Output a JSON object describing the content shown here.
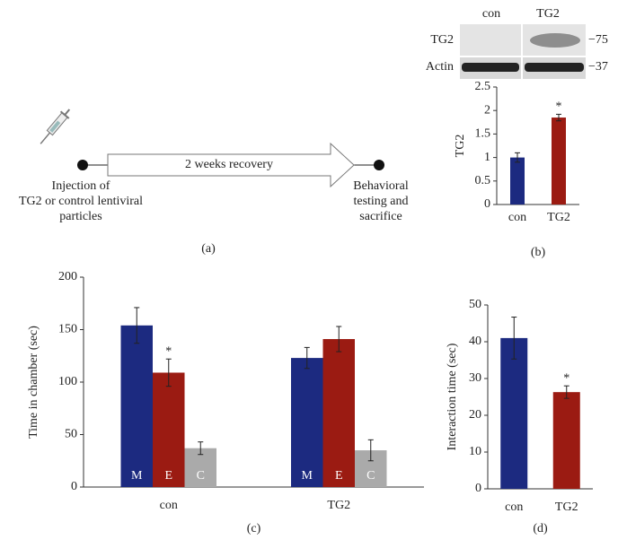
{
  "diagram": {
    "step": "2 weeks recovery",
    "start_lines": [
      "Injection of",
      "TG2 or control lentiviral",
      "particles"
    ],
    "end_lines": [
      "Behavioral",
      "testing and",
      "sacrifice"
    ],
    "panel": "(a)"
  },
  "blot": {
    "lanes": [
      "con",
      "TG2"
    ],
    "rows": [
      {
        "label": "TG2",
        "marker": "−75"
      },
      {
        "label": "Actin",
        "marker": "−37"
      }
    ]
  },
  "chart_data": [
    {
      "type": "bar",
      "panel": "(b)",
      "ylabel": "TG2",
      "categories": [
        "con",
        "TG2"
      ],
      "values": [
        1,
        1.85
      ],
      "errors": [
        0.1,
        0.07
      ],
      "colors": [
        "#1c2a80",
        "#9b1b12"
      ],
      "ylim": [
        0,
        2.5
      ],
      "yticks": [
        0,
        0.5,
        1,
        1.5,
        2,
        2.5
      ],
      "annotations": [
        {
          "text": "*",
          "category": "TG2"
        }
      ]
    },
    {
      "type": "bar",
      "panel": "(c)",
      "ylabel": "Time in chamber (sec)",
      "categories": [
        "con",
        "TG2"
      ],
      "series": [
        {
          "name": "M",
          "color": "#1c2a80",
          "values": [
            154,
            123
          ],
          "errors": [
            17,
            10
          ]
        },
        {
          "name": "E",
          "color": "#9b1b12",
          "values": [
            109,
            141
          ],
          "errors": [
            13,
            12
          ]
        },
        {
          "name": "C",
          "color": "#aaaaaa",
          "values": [
            37,
            35
          ],
          "errors": [
            6,
            10
          ]
        }
      ],
      "ylim": [
        0,
        200
      ],
      "yticks": [
        0,
        50,
        100,
        150,
        200
      ],
      "annotations": [
        {
          "text": "*",
          "category": "con",
          "series": "E"
        }
      ]
    },
    {
      "type": "bar",
      "panel": "(d)",
      "ylabel": "Interaction time (sec)",
      "categories": [
        "con",
        "TG2"
      ],
      "values": [
        41,
        26.3
      ],
      "errors": [
        5.7,
        1.7
      ],
      "colors": [
        "#1c2a80",
        "#9b1b12"
      ],
      "ylim": [
        0,
        50
      ],
      "yticks": [
        0,
        10,
        20,
        30,
        40,
        50
      ],
      "annotations": [
        {
          "text": "*",
          "category": "TG2"
        }
      ]
    }
  ]
}
